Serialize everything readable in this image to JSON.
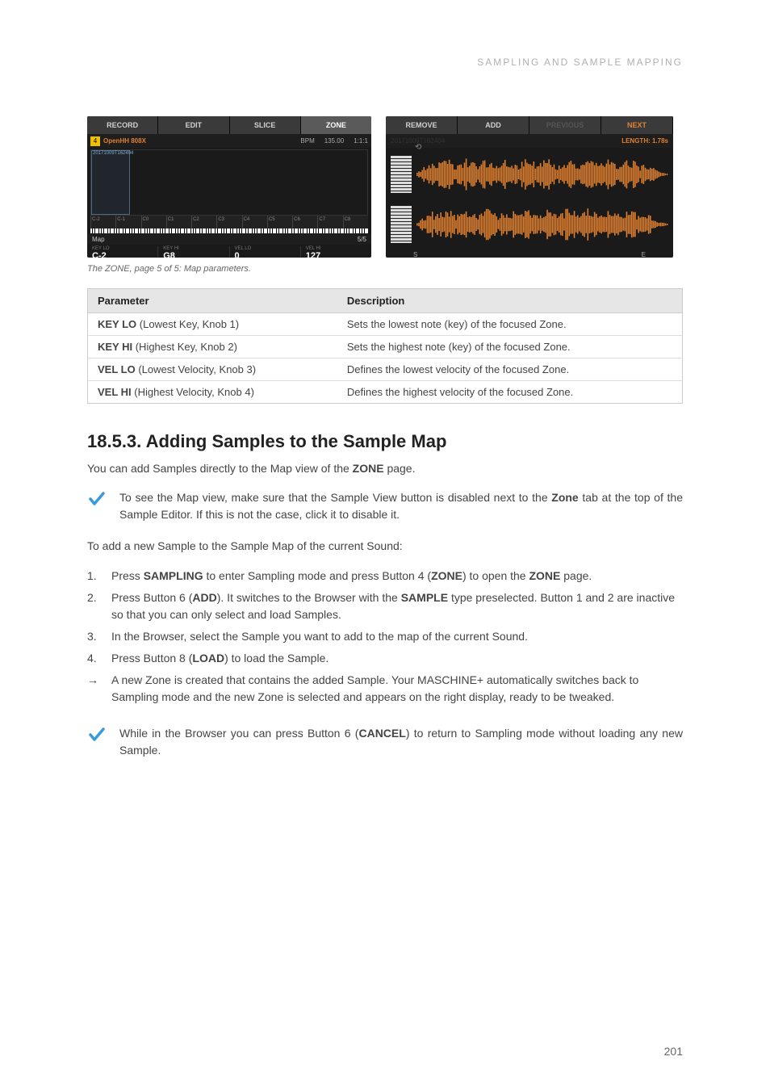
{
  "header": {
    "breadcrumb": "SAMPLING AND SAMPLE MAPPING"
  },
  "screenshot": {
    "left": {
      "tabs": [
        "RECORD",
        "EDIT",
        "SLICE",
        "ZONE"
      ],
      "active_tab": 3,
      "pad_num": "4",
      "sound_name": "OpenHH 808X",
      "bpm_label": "BPM",
      "bpm_value": "135.00",
      "bars": "1:1:1",
      "sel_label": "20171009T162404",
      "ruler_ticks": [
        "C-2",
        "C-1",
        "C0",
        "C1",
        "C2",
        "C3",
        "C4",
        "C5",
        "C6",
        "C7",
        "C8"
      ],
      "map_label": "Map",
      "page_ind": "5/5",
      "knobs": [
        {
          "label": "KEY LO",
          "value": "C-2"
        },
        {
          "label": "KEY HI",
          "value": "G8"
        },
        {
          "label": "VEL LO",
          "value": "0"
        },
        {
          "label": "VEL HI",
          "value": "127"
        }
      ]
    },
    "right": {
      "buttons": [
        "REMOVE",
        "ADD",
        "PREVIOUS",
        "NEXT"
      ],
      "dim_buttons": [
        2
      ],
      "orange_buttons": [
        3
      ],
      "filename": "20171009T162404",
      "length": "LENGTH: 1.78s",
      "wave_color": "#e08030",
      "marker_s": "S",
      "marker_e": "E"
    }
  },
  "caption": "The ZONE, page 5 of 5: Map parameters.",
  "table": {
    "headers": [
      "Parameter",
      "Description"
    ],
    "rows": [
      {
        "p_strong": "KEY LO",
        "p_rest": " (Lowest Key, Knob 1)",
        "d": "Sets the lowest note (key) of the focused Zone."
      },
      {
        "p_strong": "KEY HI",
        "p_rest": " (Highest Key, Knob 2)",
        "d": "Sets the highest note (key) of the focused Zone."
      },
      {
        "p_strong": "VEL LO",
        "p_rest": " (Lowest Velocity, Knob 3)",
        "d": "Defines the lowest velocity of the focused Zone."
      },
      {
        "p_strong": "VEL HI",
        "p_rest": " (Highest Velocity, Knob 4)",
        "d": "Defines the highest velocity of the focused Zone."
      }
    ]
  },
  "section": {
    "heading": "18.5.3. Adding Samples to the Sample Map",
    "intro_a": "You can add Samples directly to the Map view of the ",
    "intro_b": "ZONE",
    "intro_c": " page.",
    "tip1_a": "To see the Map view, make sure that the Sample View button is disabled next to the ",
    "tip1_b": "Zone",
    "tip1_c": " tab at the top of the Sample Editor. If this is not the case, click it to disable it.",
    "lead": "To add a new Sample to the Sample Map of the current Sound:",
    "steps": [
      {
        "t": "num",
        "parts": [
          {
            "s": "Press "
          },
          {
            "b": "SAMPLING"
          },
          {
            "s": " to enter Sampling mode and press Button 4 ("
          },
          {
            "b": "ZONE"
          },
          {
            "s": ") to open the "
          },
          {
            "b": "ZONE"
          },
          {
            "s": " page."
          }
        ]
      },
      {
        "t": "num",
        "parts": [
          {
            "s": "Press Button 6 ("
          },
          {
            "b": "ADD"
          },
          {
            "s": "). It switches to the Browser with the "
          },
          {
            "b": "SAMPLE"
          },
          {
            "s": " type preselected. Button 1 and 2 are inactive so that you can only select and load Samples."
          }
        ]
      },
      {
        "t": "num",
        "parts": [
          {
            "s": "In the Browser, select the Sample you want to add to the map of the current Sound."
          }
        ]
      },
      {
        "t": "num",
        "parts": [
          {
            "s": "Press Button 8 ("
          },
          {
            "b": "LOAD"
          },
          {
            "s": ") to load the Sample."
          }
        ]
      },
      {
        "t": "arrow",
        "parts": [
          {
            "s": "A new Zone is created that contains the added Sample. Your MASCHINE+ automatically switches back to Sampling mode and the new Zone is selected and appears on the right display, ready to be tweaked."
          }
        ]
      }
    ],
    "tip2_a": "While in the Browser you can press Button 6 (",
    "tip2_b": "CANCEL",
    "tip2_c": ") to return to Sampling mode without loading any new Sample."
  },
  "page_number": "201",
  "colors": {
    "accent": "#e08030",
    "check": "#3a9bdc"
  }
}
